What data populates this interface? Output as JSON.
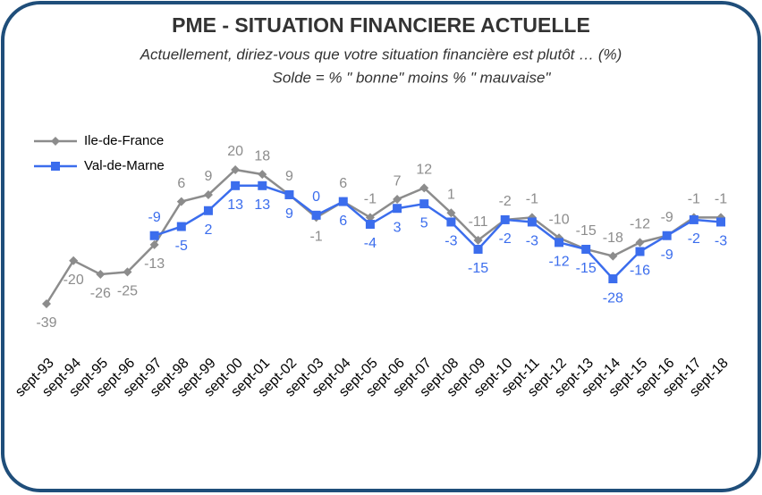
{
  "chart_data": {
    "type": "line",
    "title": "PME - SITUATION FINANCIERE ACTUELLE",
    "subtitle": [
      "Actuellement, diriez-vous que votre situation financière est plutôt … (%)",
      "Solde = % \" bonne\"  moins % \" mauvaise\""
    ],
    "categories": [
      "sept-93",
      "sept-94",
      "sept-95",
      "sept-96",
      "sept-97",
      "sept-98",
      "sept-99",
      "sept-00",
      "sept-01",
      "sept-02",
      "sept-03",
      "sept-04",
      "sept-05",
      "sept-06",
      "sept-07",
      "sept-08",
      "sept-09",
      "sept-10",
      "sept-11",
      "sept-12",
      "sept-13",
      "sept-14",
      "sept-15",
      "sept-16",
      "sept-17",
      "sept-18"
    ],
    "series": [
      {
        "name": "Ile-de-France",
        "color": "#8c8c8c",
        "marker": "diamond",
        "values": [
          -39,
          -20,
          -26,
          -25,
          -13,
          6,
          9,
          20,
          18,
          9,
          -1,
          6,
          -1,
          7,
          12,
          1,
          -11,
          -2,
          -1,
          -10,
          -15,
          -18,
          -12,
          -9,
          -1,
          -1
        ]
      },
      {
        "name": "Val-de-Marne",
        "color": "#3b6ded",
        "marker": "square",
        "values": [
          null,
          null,
          null,
          null,
          -9,
          -5,
          2,
          13,
          13,
          9,
          0,
          6,
          -4,
          3,
          5,
          -3,
          -15,
          -2,
          -3,
          -12,
          -15,
          -28,
          -16,
          -9,
          -2,
          -3
        ]
      }
    ],
    "legend": "upper left"
  }
}
